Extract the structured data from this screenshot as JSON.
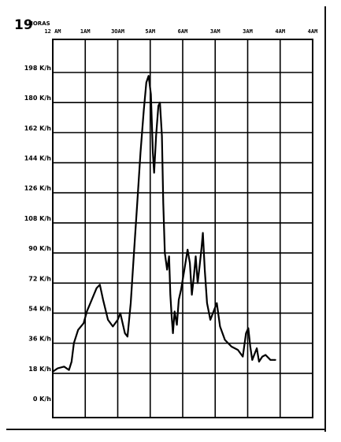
{
  "page": {
    "number": "19",
    "header_label": "HORAS"
  },
  "chart_data": {
    "type": "line",
    "title": "",
    "xlabel": "HORAS",
    "ylabel": "",
    "x_tick_labels": [
      "12 AM",
      "1AM",
      "3OAM",
      "5AM",
      "6AM",
      "3AM",
      "3AM",
      "4AM",
      "4AM"
    ],
    "y_tick_labels": [
      "198 K/h",
      "180 K/h",
      "162 K/h",
      "144 K/h",
      "126 K/h",
      "108 K/h",
      "90 K/h",
      "72 K/h",
      "54 K/h",
      "36 K/h",
      "18 K/h",
      "0 K/h"
    ],
    "y_unit": "K/h",
    "ylim": [
      0,
      198
    ],
    "xlim": [
      0,
      8
    ],
    "grid": true,
    "series": [
      {
        "values_xy": [
          [
            0.0,
            19
          ],
          [
            0.15,
            21
          ],
          [
            0.35,
            22
          ],
          [
            0.5,
            20
          ],
          [
            0.58,
            25
          ],
          [
            0.65,
            36
          ],
          [
            0.78,
            44
          ],
          [
            0.95,
            48
          ],
          [
            1.05,
            55
          ],
          [
            1.2,
            62
          ],
          [
            1.35,
            69
          ],
          [
            1.45,
            71
          ],
          [
            1.55,
            62
          ],
          [
            1.7,
            50
          ],
          [
            1.85,
            46
          ],
          [
            2.0,
            50
          ],
          [
            2.08,
            54
          ],
          [
            2.15,
            48
          ],
          [
            2.22,
            42
          ],
          [
            2.3,
            40
          ],
          [
            2.4,
            60
          ],
          [
            2.5,
            90
          ],
          [
            2.6,
            120
          ],
          [
            2.7,
            150
          ],
          [
            2.8,
            175
          ],
          [
            2.88,
            192
          ],
          [
            2.95,
            196
          ],
          [
            3.02,
            185
          ],
          [
            3.08,
            150
          ],
          [
            3.12,
            138
          ],
          [
            3.18,
            160
          ],
          [
            3.25,
            178
          ],
          [
            3.3,
            180
          ],
          [
            3.36,
            160
          ],
          [
            3.4,
            120
          ],
          [
            3.45,
            90
          ],
          [
            3.52,
            80
          ],
          [
            3.58,
            88
          ],
          [
            3.62,
            65
          ],
          [
            3.66,
            52
          ],
          [
            3.7,
            42
          ],
          [
            3.75,
            55
          ],
          [
            3.82,
            47
          ],
          [
            3.88,
            62
          ],
          [
            3.95,
            68
          ],
          [
            4.05,
            80
          ],
          [
            4.15,
            92
          ],
          [
            4.22,
            84
          ],
          [
            4.28,
            65
          ],
          [
            4.34,
            75
          ],
          [
            4.4,
            88
          ],
          [
            4.46,
            72
          ],
          [
            4.52,
            82
          ],
          [
            4.58,
            93
          ],
          [
            4.62,
            102
          ],
          [
            4.68,
            80
          ],
          [
            4.75,
            60
          ],
          [
            4.85,
            50
          ],
          [
            4.95,
            55
          ],
          [
            5.05,
            60
          ],
          [
            5.15,
            46
          ],
          [
            5.3,
            38
          ],
          [
            5.5,
            34
          ],
          [
            5.7,
            32
          ],
          [
            5.85,
            28
          ],
          [
            5.95,
            42
          ],
          [
            6.02,
            45
          ],
          [
            6.08,
            34
          ],
          [
            6.14,
            26
          ],
          [
            6.22,
            30
          ],
          [
            6.28,
            33
          ],
          [
            6.35,
            25
          ],
          [
            6.45,
            28
          ],
          [
            6.55,
            29
          ],
          [
            6.7,
            26
          ],
          [
            6.85,
            26
          ]
        ]
      }
    ]
  }
}
